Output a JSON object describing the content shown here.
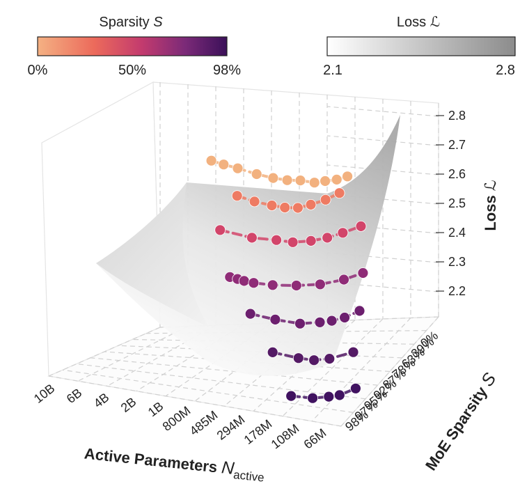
{
  "chart_data": {
    "type": "scatter",
    "title": "",
    "colorbars": {
      "sparsity": {
        "label_text": "Sparsity ",
        "label_symbol": "S",
        "ticks": [
          "0%",
          "50%",
          "98%"
        ],
        "colors": [
          "#f4b183",
          "#ec6a5b",
          "#c33b6e",
          "#7b2a78",
          "#3b1059"
        ]
      },
      "loss": {
        "label_text": "Loss ",
        "label_symbol": "ℒ",
        "ticks": [
          "2.1",
          "2.8"
        ],
        "colors": [
          "#ffffff",
          "#8c8c8c"
        ]
      }
    },
    "axes": {
      "x": {
        "label_text": "Active Parameters ",
        "label_symbol": "N",
        "label_sub": "active",
        "ticks": [
          "10B",
          "6B",
          "4B",
          "2B",
          "1B",
          "800M",
          "485M",
          "294M",
          "178M",
          "108M",
          "66M"
        ]
      },
      "y": {
        "label_text": "MoE Sparsity ",
        "label_symbol": "S",
        "ticks": [
          "0%",
          "39%",
          "63%",
          "78%",
          "87%",
          "92%",
          "95%",
          "97%",
          "98%"
        ]
      },
      "z": {
        "label_text": "Loss ",
        "label_symbol": "ℒ",
        "ticks": [
          "2.8",
          "2.7",
          "2.6",
          "2.5",
          "2.4",
          "2.3",
          "2.2"
        ],
        "range": [
          2.1,
          2.8
        ]
      }
    },
    "series": [
      {
        "name": "0%",
        "color": "#f2b17f",
        "active_log10": [
          9.7,
          9.55,
          9.38,
          9.15,
          8.95,
          8.78,
          8.62,
          8.45,
          8.32,
          8.18,
          8.05
        ],
        "loss": [
          2.59,
          2.57,
          2.55,
          2.52,
          2.5,
          2.49,
          2.49,
          2.48,
          2.49,
          2.5,
          2.52
        ]
      },
      {
        "name": "39%",
        "color": "#ee7b63",
        "active_log10": [
          9.4,
          9.2,
          9.0,
          8.85,
          8.7,
          8.55,
          8.38,
          8.22
        ],
        "loss": [
          2.52,
          2.49,
          2.47,
          2.46,
          2.46,
          2.48,
          2.51,
          2.55
        ]
      },
      {
        "name": "63%",
        "color": "#d2456a",
        "active_log10": [
          9.6,
          9.25,
          8.98,
          8.8,
          8.6,
          8.42,
          8.25,
          8.05
        ],
        "loss": [
          2.45,
          2.41,
          2.4,
          2.39,
          2.4,
          2.42,
          2.45,
          2.49
        ]
      },
      {
        "name": "78%",
        "color": "#8f2c77",
        "active_log10": [
          9.5,
          9.42,
          9.35,
          9.25,
          9.05,
          8.8,
          8.55,
          8.3,
          8.1
        ],
        "loss": [
          2.31,
          2.3,
          2.29,
          2.28,
          2.27,
          2.27,
          2.28,
          2.31,
          2.35
        ]
      },
      {
        "name": "87%",
        "color": "#6c1f6e",
        "active_log10": [
          9.3,
          9.05,
          8.8,
          8.6,
          8.48,
          8.35,
          8.2
        ],
        "loss": [
          2.23,
          2.2,
          2.18,
          2.19,
          2.2,
          2.22,
          2.26
        ]
      },
      {
        "name": "92%",
        "color": "#541a65",
        "active_log10": [
          9.1,
          8.85,
          8.7,
          8.55,
          8.32
        ],
        "loss": [
          2.14,
          2.11,
          2.1,
          2.11,
          2.15
        ]
      },
      {
        "name": "95%",
        "color": "#401260",
        "active_log10": [
          8.95,
          8.75,
          8.6,
          8.5,
          8.35
        ],
        "loss": [
          2.02,
          2.01,
          2.02,
          2.03,
          2.07
        ]
      }
    ]
  }
}
